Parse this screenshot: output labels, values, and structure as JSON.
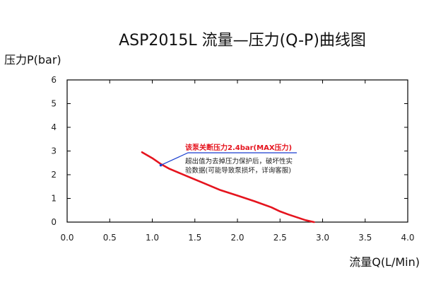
{
  "chart_data": {
    "type": "line",
    "title": "ASP2015L 流量—压力(Q-P)曲线图",
    "ylabel": "压力P(bar)",
    "xlabel": "流量Q(L/Min)",
    "xlim": [
      0,
      4
    ],
    "ylim": [
      0,
      6
    ],
    "x_ticks": [
      "0.0",
      "0.5",
      "1.0",
      "1.5",
      "2.0",
      "2.5",
      "3.0",
      "3.5",
      "4.0"
    ],
    "y_ticks": [
      "0",
      "1",
      "2",
      "3",
      "4",
      "5",
      "6"
    ],
    "grid": false,
    "series": [
      {
        "color": "#e5141e",
        "x": [
          0.88,
          1.0,
          1.1,
          1.2,
          1.4,
          1.6,
          1.8,
          2.0,
          2.2,
          2.4,
          2.5,
          2.6,
          2.7,
          2.8,
          2.9
        ],
        "y": [
          2.95,
          2.7,
          2.45,
          2.25,
          1.95,
          1.65,
          1.35,
          1.12,
          0.88,
          0.62,
          0.45,
          0.32,
          0.2,
          0.08,
          0.0
        ]
      }
    ],
    "annotation": {
      "point": {
        "x": 1.1,
        "y": 2.4
      },
      "headline": "该泵关断压力2.4bar(MAX压力)",
      "lines": [
        "超出值为去掉压力保护后，破坏性实",
        "验数据(可能导致泵损坏，详询客服)"
      ],
      "headline_color": "#e5141e",
      "leader_color": "#1a3fd0"
    }
  }
}
